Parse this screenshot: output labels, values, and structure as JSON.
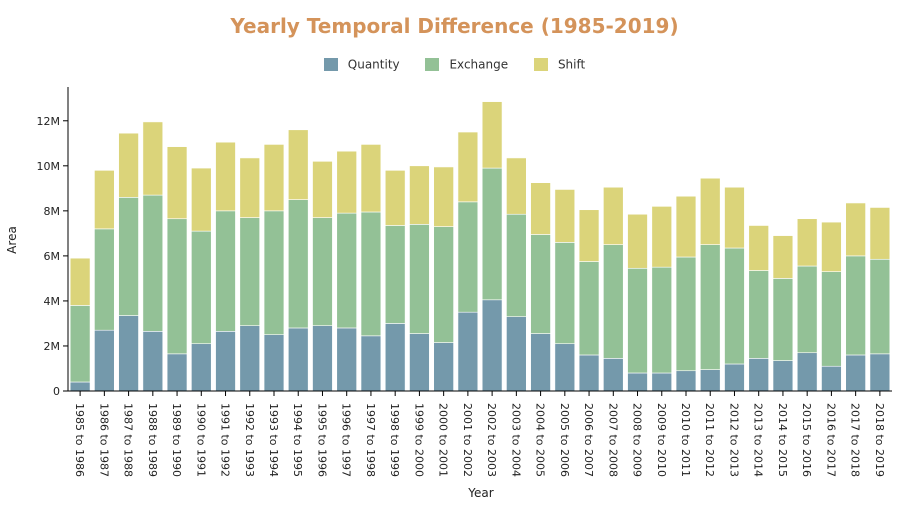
{
  "chart_data": {
    "type": "bar",
    "stacked": true,
    "title": "Yearly Temporal Difference (1985-2019)",
    "xlabel": "Year",
    "ylabel": "Area",
    "ylim": [
      0,
      13500000
    ],
    "yticks": [
      0,
      2000000,
      4000000,
      6000000,
      8000000,
      10000000,
      12000000
    ],
    "ytick_labels": [
      "0",
      "2M",
      "4M",
      "6M",
      "8M",
      "10M",
      "12M"
    ],
    "legend_position": "top-center",
    "grid": false,
    "categories": [
      "1985 to 1986",
      "1986 to 1987",
      "1987 to 1988",
      "1988 to 1989",
      "1989 to 1990",
      "1990 to 1991",
      "1991 to 1992",
      "1992 to 1993",
      "1993 to 1994",
      "1994 to 1995",
      "1995 to 1996",
      "1996 to 1997",
      "1997 to 1998",
      "1998 to 1999",
      "1999 to 2000",
      "2000 to 2001",
      "2001 to 2002",
      "2002 to 2003",
      "2003 to 2004",
      "2004 to 2005",
      "2005 to 2006",
      "2006 to 2007",
      "2007 to 2008",
      "2008 to 2009",
      "2009 to 2010",
      "2010 to 2011",
      "2011 to 2012",
      "2012 to 2013",
      "2013 to 2014",
      "2014 to 2015",
      "2015 to 2016",
      "2016 to 2017",
      "2017 to 2018",
      "2018 to 2019"
    ],
    "series": [
      {
        "name": "Quantity",
        "color": "#7499ab",
        "values": [
          400000,
          2700000,
          3350000,
          2650000,
          1650000,
          2100000,
          2650000,
          2900000,
          2500000,
          2800000,
          2900000,
          2800000,
          2450000,
          3000000,
          2550000,
          2150000,
          3500000,
          4050000,
          3300000,
          2550000,
          2100000,
          1600000,
          1450000,
          800000,
          800000,
          900000,
          950000,
          1200000,
          1450000,
          1350000,
          1700000,
          1100000,
          1600000,
          1650000
        ]
      },
      {
        "name": "Exchange",
        "color": "#93c196",
        "values": [
          3400000,
          4500000,
          5250000,
          6050000,
          6000000,
          5000000,
          5350000,
          4800000,
          5500000,
          5700000,
          4800000,
          5100000,
          5500000,
          4350000,
          4850000,
          5150000,
          4900000,
          5850000,
          4550000,
          4400000,
          4500000,
          4150000,
          5050000,
          4650000,
          4700000,
          5050000,
          5550000,
          5150000,
          3900000,
          3650000,
          3850000,
          4200000,
          4400000,
          4200000
        ]
      },
      {
        "name": "Shift",
        "color": "#dbd47a",
        "values": [
          2100000,
          2600000,
          2850000,
          3250000,
          3200000,
          2800000,
          3050000,
          2650000,
          2950000,
          3100000,
          2500000,
          2750000,
          3000000,
          2450000,
          2600000,
          2650000,
          3100000,
          2950000,
          2500000,
          2300000,
          2350000,
          2300000,
          2550000,
          2400000,
          2700000,
          2700000,
          2950000,
          2700000,
          2000000,
          1900000,
          2100000,
          2200000,
          2350000,
          2300000
        ]
      }
    ]
  }
}
